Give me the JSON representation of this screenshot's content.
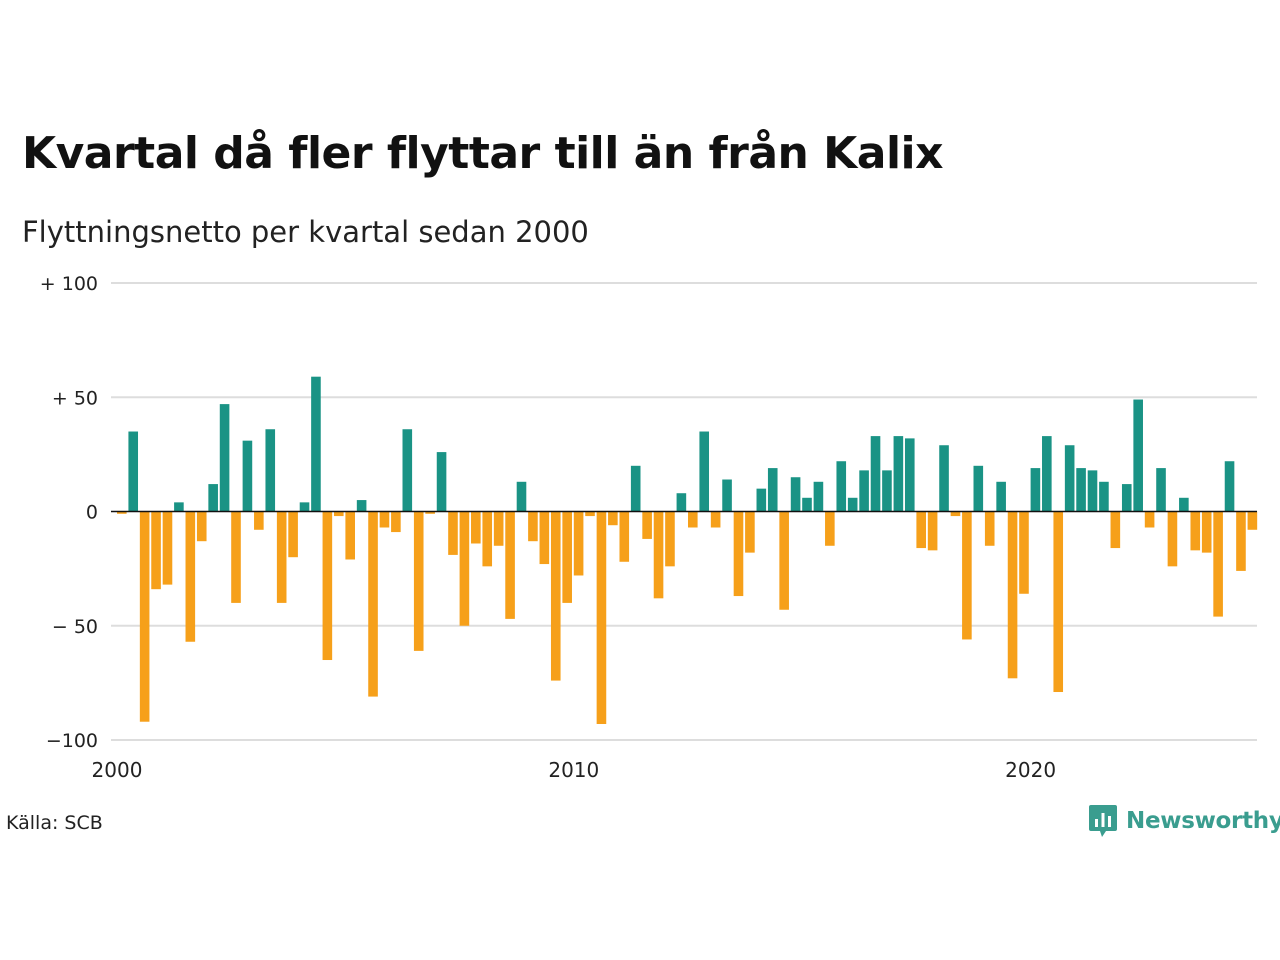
{
  "title": "Kvartal då fler flyttar till än från Kalix",
  "subtitle": "Flyttningsnetto per kvartal sedan 2000",
  "source": "Källa: SCB",
  "brand": "Newsworthy",
  "colors": {
    "positive": "#1a9385",
    "negative": "#f6a01a",
    "grid": "#dddddd",
    "brand": "#3a9d8f"
  },
  "chart_data": {
    "type": "bar",
    "x_start": "2000 Q1",
    "ylim": [
      -100,
      100
    ],
    "y_ticks": [
      {
        "value": 100,
        "label": "+ 100"
      },
      {
        "value": 50,
        "label": "+  50"
      },
      {
        "value": 0,
        "label": "0"
      },
      {
        "value": -50,
        "label": "− 50"
      },
      {
        "value": -100,
        "label": "−100"
      }
    ],
    "x_ticks": [
      {
        "value": 2000,
        "label": "2000"
      },
      {
        "value": 2010,
        "label": "2010"
      },
      {
        "value": 2020,
        "label": "2020"
      }
    ],
    "grid": true,
    "values": [
      -1,
      35,
      -92,
      -34,
      -32,
      4,
      -57,
      -13,
      12,
      47,
      -40,
      31,
      -8,
      36,
      -40,
      -20,
      4,
      59,
      -65,
      -2,
      -21,
      5,
      -81,
      -7,
      -9,
      36,
      -61,
      -1,
      26,
      -19,
      -50,
      -14,
      -24,
      -15,
      -47,
      13,
      -13,
      -23,
      -74,
      -40,
      -28,
      -2,
      -93,
      -6,
      -22,
      20,
      -12,
      -38,
      -24,
      8,
      -7,
      35,
      -7,
      14,
      -37,
      -18,
      10,
      19,
      -43,
      15,
      6,
      13,
      -15,
      22,
      6,
      18,
      33,
      18,
      33,
      32,
      -16,
      -17,
      29,
      -2,
      -56,
      20,
      -15,
      13,
      -73,
      -36,
      19,
      33,
      -79,
      29,
      19,
      18,
      13,
      -16,
      12,
      49,
      -7,
      19,
      -24,
      6,
      -17,
      -18,
      -46,
      22,
      -26,
      -8
    ]
  }
}
